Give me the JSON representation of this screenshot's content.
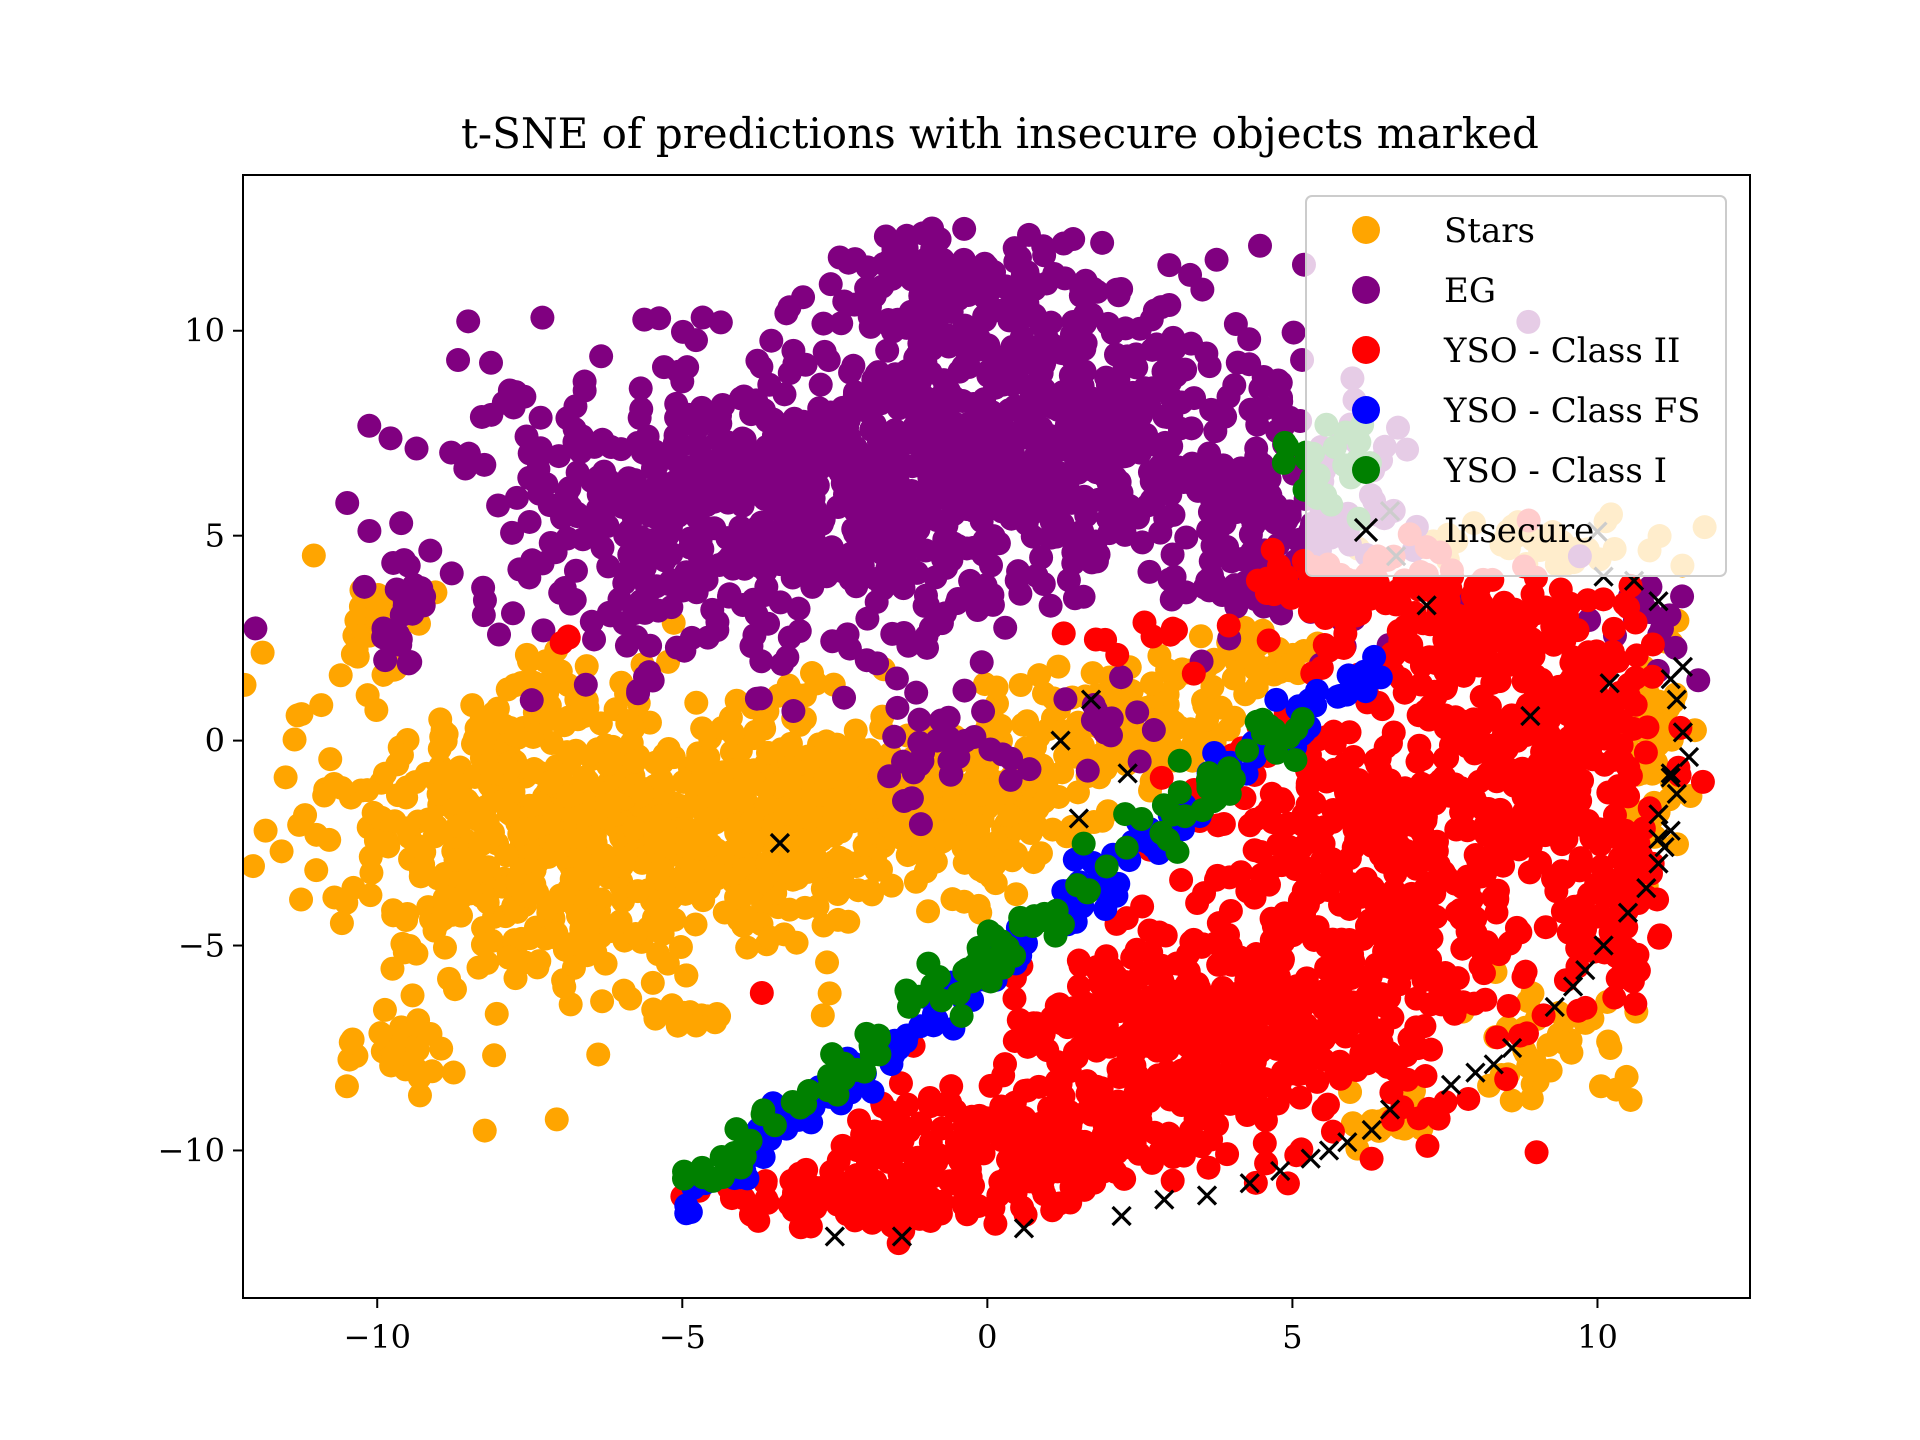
{
  "chart_data": {
    "type": "scatter",
    "title": "t-SNE of predictions with insecure objects marked",
    "xlabel": "",
    "ylabel": "",
    "xlim": [
      -12.2,
      12.5
    ],
    "ylim": [
      -13.6,
      13.8
    ],
    "x_ticks": [
      -10,
      -5,
      0,
      5,
      10
    ],
    "x_tick_labels": [
      "−10",
      "−5",
      "0",
      "5",
      "10"
    ],
    "y_ticks": [
      -10,
      -5,
      0,
      5,
      10
    ],
    "y_tick_labels": [
      "−10",
      "−5",
      "0",
      "5",
      "10"
    ],
    "grid": false,
    "legend_position": "top-right",
    "series": [
      {
        "name": "Stars",
        "color": "#ffa500",
        "marker": "circle",
        "regions": [
          {
            "cx": -7.2,
            "cy": -2.2,
            "rx": 3.6,
            "ry": 3.8,
            "n": 560
          },
          {
            "cx": -3.5,
            "cy": -1.8,
            "rx": 2.8,
            "ry": 2.6,
            "n": 320
          },
          {
            "cx": -0.3,
            "cy": -1.6,
            "rx": 2.2,
            "ry": 2.0,
            "n": 220
          },
          {
            "cx": 2.2,
            "cy": 0.4,
            "rx": 1.8,
            "ry": 1.5,
            "n": 110
          },
          {
            "cx": 4.2,
            "cy": 1.8,
            "rx": 1.0,
            "ry": 0.7,
            "n": 45
          },
          {
            "cx": -9.5,
            "cy": -7.6,
            "rx": 0.9,
            "ry": 1.2,
            "n": 30
          },
          {
            "cx": -4.9,
            "cy": -6.7,
            "rx": 0.8,
            "ry": 0.3,
            "n": 12
          },
          {
            "cx": -10.1,
            "cy": 2.8,
            "rx": 0.5,
            "ry": 1.6,
            "n": 20
          },
          {
            "cx": 11.0,
            "cy": -0.6,
            "rx": 0.6,
            "ry": 3.2,
            "n": 45
          },
          {
            "cx": 9.2,
            "cy": -7.4,
            "rx": 1.4,
            "ry": 1.4,
            "n": 40
          },
          {
            "cx": 9.0,
            "cy": 4.8,
            "rx": 2.2,
            "ry": 0.6,
            "n": 40
          },
          {
            "cx": 6.6,
            "cy": -9.4,
            "rx": 0.8,
            "ry": 0.6,
            "n": 15
          }
        ]
      },
      {
        "name": "EG",
        "color": "#800080",
        "marker": "circle",
        "regions": [
          {
            "cx": -3.5,
            "cy": 5.8,
            "rx": 5.0,
            "ry": 3.6,
            "n": 700
          },
          {
            "cx": 1.3,
            "cy": 7.8,
            "rx": 4.0,
            "ry": 3.8,
            "n": 520
          },
          {
            "cx": 4.8,
            "cy": 5.3,
            "rx": 1.8,
            "ry": 2.6,
            "n": 150
          },
          {
            "cx": -0.6,
            "cy": 11.2,
            "rx": 2.0,
            "ry": 1.0,
            "n": 80
          },
          {
            "cx": -9.5,
            "cy": 3.6,
            "rx": 0.5,
            "ry": 1.8,
            "n": 25
          },
          {
            "cx": -1.0,
            "cy": 0.0,
            "rx": 1.4,
            "ry": 1.4,
            "n": 35
          },
          {
            "cx": 1.6,
            "cy": 0.3,
            "rx": 0.8,
            "ry": 1.0,
            "n": 15
          },
          {
            "cx": 10.8,
            "cy": 3.0,
            "rx": 0.8,
            "ry": 1.2,
            "n": 15
          }
        ]
      },
      {
        "name": "YSO - Class II",
        "color": "#ff0000",
        "marker": "circle",
        "regions": [
          {
            "cx": 6.5,
            "cy": -3.0,
            "rx": 3.0,
            "ry": 5.5,
            "n": 520
          },
          {
            "cx": 3.5,
            "cy": -7.0,
            "rx": 3.0,
            "ry": 2.2,
            "n": 360
          },
          {
            "cx": 0.8,
            "cy": -9.8,
            "rx": 3.0,
            "ry": 1.5,
            "n": 220
          },
          {
            "cx": -2.2,
            "cy": -11.2,
            "rx": 2.2,
            "ry": 0.8,
            "n": 100
          },
          {
            "cx": 9.5,
            "cy": 0.0,
            "rx": 1.5,
            "ry": 3.0,
            "n": 200
          },
          {
            "cx": 8.0,
            "cy": 2.5,
            "rx": 2.0,
            "ry": 1.5,
            "n": 120
          },
          {
            "cx": 10.4,
            "cy": -4.0,
            "rx": 0.8,
            "ry": 2.8,
            "n": 70
          },
          {
            "cx": 6.0,
            "cy": 3.8,
            "rx": 1.3,
            "ry": 0.8,
            "n": 60
          },
          {
            "cx": 2.8,
            "cy": 2.6,
            "rx": 1.2,
            "ry": 0.3,
            "n": 10
          },
          {
            "cx": -6.9,
            "cy": 2.5,
            "rx": 0.25,
            "ry": 0.15,
            "n": 3
          }
        ]
      },
      {
        "name": "YSO - Class FS",
        "color": "#0000ff",
        "marker": "circle",
        "regions": [
          {
            "x1": -5.0,
            "y1": -11.4,
            "x2": 6.3,
            "y2": 1.8,
            "width": 0.45,
            "n": 160
          }
        ]
      },
      {
        "name": "YSO - Class I",
        "color": "#008000",
        "marker": "circle",
        "regions": [
          {
            "x1": -4.7,
            "y1": -10.8,
            "x2": 5.3,
            "y2": 0.8,
            "width": 0.55,
            "n": 120
          },
          {
            "cx": 5.5,
            "cy": 6.8,
            "rx": 0.8,
            "ry": 1.2,
            "n": 25
          }
        ]
      },
      {
        "name": "Insecure",
        "color": "#000000",
        "marker": "x",
        "points": [
          [
            -3.4,
            -2.5
          ],
          [
            1.2,
            0.0
          ],
          [
            1.7,
            1.0
          ],
          [
            2.3,
            -0.8
          ],
          [
            1.5,
            -1.9
          ],
          [
            -2.5,
            -12.1
          ],
          [
            -1.4,
            -12.1
          ],
          [
            0.6,
            -11.9
          ],
          [
            2.2,
            -11.6
          ],
          [
            2.9,
            -11.2
          ],
          [
            3.6,
            -11.1
          ],
          [
            4.3,
            -10.8
          ],
          [
            4.8,
            -10.5
          ],
          [
            5.3,
            -10.2
          ],
          [
            5.6,
            -10.0
          ],
          [
            5.9,
            -9.8
          ],
          [
            6.3,
            -9.5
          ],
          [
            6.6,
            -9.0
          ],
          [
            7.6,
            -8.4
          ],
          [
            8.0,
            -8.1
          ],
          [
            8.3,
            -7.9
          ],
          [
            8.6,
            -7.5
          ],
          [
            9.3,
            -6.5
          ],
          [
            9.6,
            -6.0
          ],
          [
            9.8,
            -5.6
          ],
          [
            10.1,
            -5.0
          ],
          [
            10.5,
            -4.2
          ],
          [
            10.8,
            -3.6
          ],
          [
            11.0,
            -3.0
          ],
          [
            11.1,
            -2.6
          ],
          [
            11.2,
            -2.2
          ],
          [
            11.0,
            -1.8
          ],
          [
            11.3,
            -1.3
          ],
          [
            11.2,
            -0.8
          ],
          [
            11.5,
            -0.4
          ],
          [
            11.4,
            0.2
          ],
          [
            11.3,
            1.0
          ],
          [
            11.2,
            1.5
          ],
          [
            11.4,
            1.8
          ],
          [
            10.2,
            1.4
          ],
          [
            8.9,
            0.6
          ],
          [
            11.0,
            3.4
          ],
          [
            10.6,
            3.9
          ],
          [
            10.1,
            4.0
          ],
          [
            7.2,
            3.3
          ],
          [
            6.7,
            4.5
          ],
          [
            6.6,
            5.6
          ],
          [
            10.0,
            5.1
          ],
          [
            11.2,
            -0.9
          ],
          [
            11.0,
            -2.4
          ]
        ]
      }
    ]
  }
}
